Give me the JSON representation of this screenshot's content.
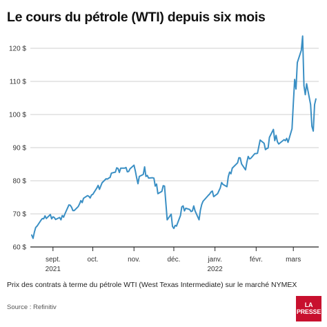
{
  "title": "Le cours du pétrole (WTI) depuis six mois",
  "caption": "Prix des contrats à terme du pétrole WTI (West Texas Intermediate) sur le marché NYMEX",
  "source": "Source : Refinitiv",
  "logo": {
    "line1": "LA",
    "line2": "PRESSE",
    "color": "#c8102e"
  },
  "colors": {
    "line": "#3a8fc4",
    "grid": "#cfcfcf",
    "axis": "#222222"
  },
  "chart_data": {
    "type": "line",
    "title": "Le cours du pétrole (WTI) depuis six mois",
    "xlabel": "",
    "ylabel": "",
    "ylim": [
      60,
      125
    ],
    "xlim": [
      "2021-08-16",
      "2022-03-17"
    ],
    "yticks": [
      {
        "value": 60,
        "label": "60 $"
      },
      {
        "value": 70,
        "label": "70 $"
      },
      {
        "value": 80,
        "label": "80 $"
      },
      {
        "value": 90,
        "label": "90 $"
      },
      {
        "value": 100,
        "label": "100 $"
      },
      {
        "value": 110,
        "label": "110 $"
      },
      {
        "value": 120,
        "label": "120 $"
      }
    ],
    "xticks": [
      {
        "date": "2021-09-01",
        "label": "sept.",
        "sub": "2021"
      },
      {
        "date": "2021-10-01",
        "label": "oct.",
        "sub": ""
      },
      {
        "date": "2021-11-01",
        "label": "nov.",
        "sub": ""
      },
      {
        "date": "2021-12-01",
        "label": "déc.",
        "sub": ""
      },
      {
        "date": "2022-01-01",
        "label": "janv.",
        "sub": "2022"
      },
      {
        "date": "2022-02-01",
        "label": "févr.",
        "sub": ""
      },
      {
        "date": "2022-03-01",
        "label": "mars",
        "sub": ""
      }
    ],
    "grid": "horizontal",
    "series": [
      {
        "points": [
          [
            "2021-08-16",
            63.6
          ],
          [
            "2021-08-17",
            62.6
          ],
          [
            "2021-08-18",
            64.5
          ],
          [
            "2021-08-19",
            65.9
          ],
          [
            "2021-08-20",
            66.3
          ],
          [
            "2021-08-23",
            68.1
          ],
          [
            "2021-08-24",
            68.6
          ],
          [
            "2021-08-25",
            68.5
          ],
          [
            "2021-08-26",
            69.4
          ],
          [
            "2021-08-27",
            68.6
          ],
          [
            "2021-08-30",
            69.8
          ],
          [
            "2021-08-31",
            68.5
          ],
          [
            "2021-09-01",
            69.1
          ],
          [
            "2021-09-02",
            68.9
          ],
          [
            "2021-09-03",
            68.3
          ],
          [
            "2021-09-06",
            68.9
          ],
          [
            "2021-09-07",
            68.2
          ],
          [
            "2021-09-08",
            69.5
          ],
          [
            "2021-09-09",
            69.0
          ],
          [
            "2021-09-10",
            70.0
          ],
          [
            "2021-09-13",
            72.7
          ],
          [
            "2021-09-14",
            72.6
          ],
          [
            "2021-09-15",
            72.0
          ],
          [
            "2021-09-16",
            71.0
          ],
          [
            "2021-09-17",
            71.0
          ],
          [
            "2021-09-20",
            72.2
          ],
          [
            "2021-09-21",
            73.0
          ],
          [
            "2021-09-22",
            74.0
          ],
          [
            "2021-09-23",
            73.4
          ],
          [
            "2021-09-24",
            74.7
          ],
          [
            "2021-09-27",
            75.5
          ],
          [
            "2021-09-28",
            75.3
          ],
          [
            "2021-09-29",
            74.8
          ],
          [
            "2021-09-30",
            75.7
          ],
          [
            "2021-10-01",
            75.9
          ],
          [
            "2021-10-04",
            77.8
          ],
          [
            "2021-10-05",
            78.6
          ],
          [
            "2021-10-06",
            77.4
          ],
          [
            "2021-10-07",
            78.4
          ],
          [
            "2021-10-08",
            79.4
          ],
          [
            "2021-10-11",
            80.6
          ],
          [
            "2021-10-12",
            80.5
          ],
          [
            "2021-10-13",
            80.8
          ],
          [
            "2021-10-14",
            81.0
          ],
          [
            "2021-10-15",
            82.3
          ],
          [
            "2021-10-18",
            82.6
          ],
          [
            "2021-10-19",
            83.9
          ],
          [
            "2021-10-20",
            83.7
          ],
          [
            "2021-10-21",
            82.5
          ],
          [
            "2021-10-22",
            83.8
          ],
          [
            "2021-10-25",
            83.8
          ],
          [
            "2021-10-26",
            84.0
          ],
          [
            "2021-10-27",
            82.7
          ],
          [
            "2021-10-28",
            82.8
          ],
          [
            "2021-10-29",
            83.6
          ],
          [
            "2021-11-01",
            84.7
          ],
          [
            "2021-11-02",
            83.0
          ],
          [
            "2021-11-03",
            80.9
          ],
          [
            "2021-11-04",
            79.1
          ],
          [
            "2021-11-05",
            81.3
          ],
          [
            "2021-11-08",
            81.9
          ],
          [
            "2021-11-09",
            84.2
          ],
          [
            "2021-11-10",
            81.3
          ],
          [
            "2021-11-11",
            81.6
          ],
          [
            "2021-11-12",
            80.8
          ],
          [
            "2021-11-15",
            80.9
          ],
          [
            "2021-11-16",
            80.8
          ],
          [
            "2021-11-17",
            78.4
          ],
          [
            "2021-11-18",
            79.0
          ],
          [
            "2021-11-19",
            76.1
          ],
          [
            "2021-11-22",
            76.8
          ],
          [
            "2021-11-23",
            78.5
          ],
          [
            "2021-11-24",
            78.4
          ],
          [
            "2021-11-26",
            68.2
          ],
          [
            "2021-11-29",
            69.9
          ],
          [
            "2021-11-30",
            66.2
          ],
          [
            "2021-12-01",
            65.6
          ],
          [
            "2021-12-02",
            66.5
          ],
          [
            "2021-12-03",
            66.3
          ],
          [
            "2021-12-06",
            69.5
          ],
          [
            "2021-12-07",
            72.1
          ],
          [
            "2021-12-08",
            72.4
          ],
          [
            "2021-12-09",
            70.9
          ],
          [
            "2021-12-10",
            71.7
          ],
          [
            "2021-12-13",
            71.3
          ],
          [
            "2021-12-14",
            70.7
          ],
          [
            "2021-12-15",
            70.9
          ],
          [
            "2021-12-16",
            72.4
          ],
          [
            "2021-12-17",
            70.9
          ],
          [
            "2021-12-20",
            68.2
          ],
          [
            "2021-12-21",
            71.1
          ],
          [
            "2021-12-22",
            72.8
          ],
          [
            "2021-12-23",
            73.8
          ],
          [
            "2021-12-27",
            75.6
          ],
          [
            "2021-12-28",
            76.0
          ],
          [
            "2021-12-29",
            76.6
          ],
          [
            "2021-12-30",
            76.9
          ],
          [
            "2021-12-31",
            75.2
          ],
          [
            "2022-01-03",
            76.1
          ],
          [
            "2022-01-04",
            76.99
          ],
          [
            "2022-01-05",
            77.85
          ],
          [
            "2022-01-06",
            79.46
          ],
          [
            "2022-01-07",
            78.9
          ],
          [
            "2022-01-10",
            78.2
          ],
          [
            "2022-01-11",
            81.2
          ],
          [
            "2022-01-12",
            82.6
          ],
          [
            "2022-01-13",
            82.1
          ],
          [
            "2022-01-14",
            83.8
          ],
          [
            "2022-01-18",
            85.4
          ],
          [
            "2022-01-19",
            86.96
          ],
          [
            "2022-01-20",
            86.9
          ],
          [
            "2022-01-21",
            85.1
          ],
          [
            "2022-01-24",
            83.3
          ],
          [
            "2022-01-25",
            85.6
          ],
          [
            "2022-01-26",
            87.35
          ],
          [
            "2022-01-27",
            86.6
          ],
          [
            "2022-01-28",
            86.8
          ],
          [
            "2022-01-31",
            88.2
          ],
          [
            "2022-02-01",
            88.2
          ],
          [
            "2022-02-02",
            88.3
          ],
          [
            "2022-02-03",
            90.3
          ],
          [
            "2022-02-04",
            92.3
          ],
          [
            "2022-02-07",
            91.3
          ],
          [
            "2022-02-08",
            89.4
          ],
          [
            "2022-02-09",
            89.7
          ],
          [
            "2022-02-10",
            89.9
          ],
          [
            "2022-02-11",
            93.1
          ],
          [
            "2022-02-14",
            95.5
          ],
          [
            "2022-02-15",
            92.1
          ],
          [
            "2022-02-16",
            93.7
          ],
          [
            "2022-02-17",
            91.8
          ],
          [
            "2022-02-18",
            91.1
          ],
          [
            "2022-02-22",
            92.4
          ],
          [
            "2022-02-23",
            92.1
          ],
          [
            "2022-02-24",
            92.8
          ],
          [
            "2022-02-25",
            91.6
          ],
          [
            "2022-02-28",
            95.7
          ],
          [
            "2022-03-01",
            103.4
          ],
          [
            "2022-03-02",
            110.6
          ],
          [
            "2022-03-03",
            107.7
          ],
          [
            "2022-03-04",
            115.7
          ],
          [
            "2022-03-07",
            119.4
          ],
          [
            "2022-03-08",
            123.7
          ],
          [
            "2022-03-09",
            108.7
          ],
          [
            "2022-03-10",
            106.0
          ],
          [
            "2022-03-11",
            109.3
          ],
          [
            "2022-03-14",
            103.0
          ],
          [
            "2022-03-15",
            96.4
          ],
          [
            "2022-03-16",
            95.0
          ],
          [
            "2022-03-17",
            102.98
          ],
          [
            "2022-03-18",
            104.7
          ]
        ]
      }
    ]
  }
}
